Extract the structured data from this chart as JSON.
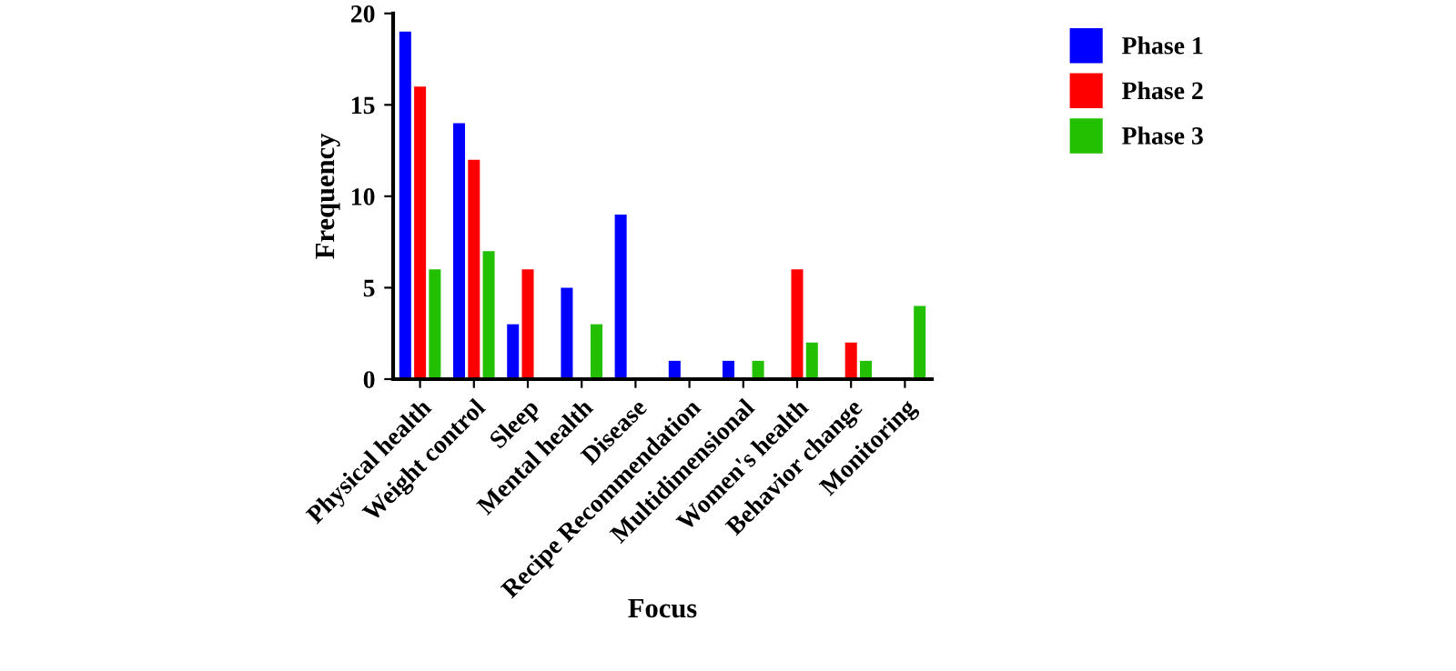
{
  "chart_data": {
    "type": "bar",
    "xlabel": "Focus",
    "ylabel": "Frequency",
    "categories": [
      "Physical health",
      "Weight control",
      "Sleep",
      "Mental health",
      "Disease",
      "Recipe Recommendation",
      "Multidimensional",
      "Women's health",
      "Behavior change",
      "Monitoring"
    ],
    "series": [
      {
        "name": "Phase 1",
        "color": "#0000ff",
        "values": [
          19,
          14,
          3,
          5,
          9,
          1,
          1,
          0,
          0,
          0
        ]
      },
      {
        "name": "Phase 2",
        "color": "#ff0000",
        "values": [
          16,
          12,
          6,
          0,
          0,
          0,
          0,
          6,
          2,
          0
        ]
      },
      {
        "name": "Phase 3",
        "color": "#22c000",
        "values": [
          6,
          7,
          0,
          3,
          0,
          0,
          1,
          2,
          1,
          4
        ]
      }
    ],
    "ylim": [
      0,
      20
    ],
    "yticks": [
      0,
      5,
      10,
      15,
      20
    ],
    "grid": false,
    "legend": "top right"
  }
}
